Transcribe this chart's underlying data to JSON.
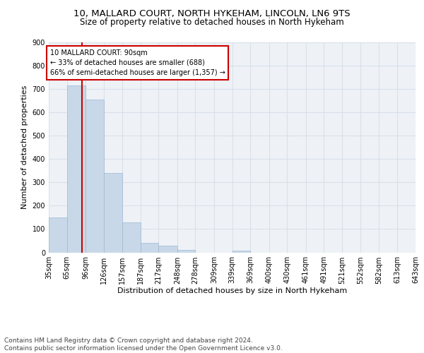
{
  "title1": "10, MALLARD COURT, NORTH HYKEHAM, LINCOLN, LN6 9TS",
  "title2": "Size of property relative to detached houses in North Hykeham",
  "xlabel": "Distribution of detached houses by size in North Hykeham",
  "ylabel": "Number of detached properties",
  "bin_labels": [
    "35sqm",
    "65sqm",
    "96sqm",
    "126sqm",
    "157sqm",
    "187sqm",
    "217sqm",
    "248sqm",
    "278sqm",
    "309sqm",
    "339sqm",
    "369sqm",
    "400sqm",
    "430sqm",
    "461sqm",
    "491sqm",
    "521sqm",
    "552sqm",
    "582sqm",
    "613sqm",
    "643sqm"
  ],
  "bin_edges": [
    35,
    65,
    96,
    126,
    157,
    187,
    217,
    248,
    278,
    309,
    339,
    369,
    400,
    430,
    461,
    491,
    521,
    552,
    582,
    613,
    643
  ],
  "bar_heights": [
    150,
    715,
    655,
    340,
    130,
    42,
    30,
    12,
    0,
    0,
    8,
    0,
    0,
    0,
    0,
    0,
    0,
    0,
    0,
    0
  ],
  "bar_color": "#c8d8e8",
  "bar_edge_color": "#a0b8d0",
  "property_size": 90,
  "red_line_color": "#cc0000",
  "annotation_text": "10 MALLARD COURT: 90sqm\n← 33% of detached houses are smaller (688)\n66% of semi-detached houses are larger (1,357) →",
  "annotation_box_color": "#cc0000",
  "ylim": [
    0,
    900
  ],
  "yticks": [
    0,
    100,
    200,
    300,
    400,
    500,
    600,
    700,
    800,
    900
  ],
  "grid_color": "#d8e0e8",
  "bg_color": "#eef2f7",
  "footer": "Contains HM Land Registry data © Crown copyright and database right 2024.\nContains public sector information licensed under the Open Government Licence v3.0.",
  "title1_fontsize": 9.5,
  "title2_fontsize": 8.5,
  "xlabel_fontsize": 8,
  "ylabel_fontsize": 8,
  "tick_fontsize": 7,
  "footer_fontsize": 6.5
}
